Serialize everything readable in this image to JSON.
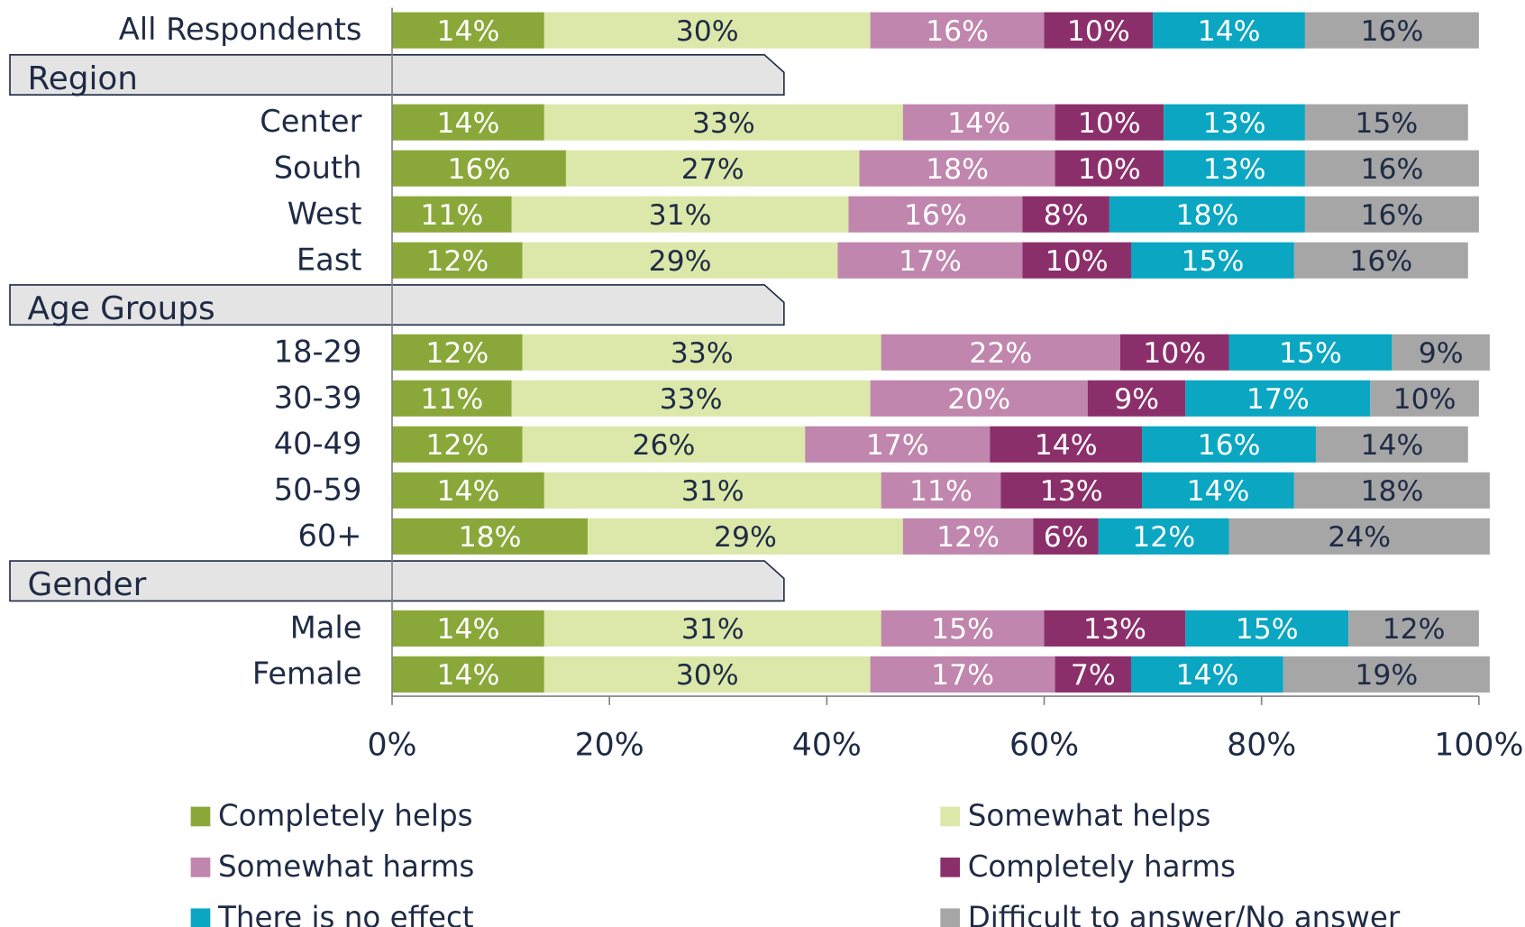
{
  "chart_data": {
    "type": "stacked-bar-horizontal",
    "categories": [
      "All Respondents",
      {
        "section": "Region"
      },
      "Center",
      "South",
      "West",
      "East",
      {
        "section": "Age Groups"
      },
      "18-29",
      "30-39",
      "40-49",
      "50-59",
      "60+",
      {
        "section": "Gender"
      },
      "Male",
      "Female"
    ],
    "series": [
      {
        "name": "Completely helps",
        "color": "#8aa83a",
        "label_color": "#ffffff",
        "values": [
          14,
          null,
          14,
          16,
          11,
          12,
          null,
          12,
          11,
          12,
          14,
          18,
          null,
          14,
          14
        ],
        "value_labels": [
          "14%",
          null,
          "14%",
          "16%",
          "11%",
          "12%",
          null,
          "12%",
          "11%",
          "12%",
          "14%",
          "18%",
          null,
          "14%",
          "14%"
        ]
      },
      {
        "name": "Somewhat helps",
        "color": "#dce8a9",
        "label_color": "#1f2b45",
        "values": [
          30,
          null,
          33,
          27,
          31,
          29,
          null,
          33,
          33,
          26,
          31,
          29,
          null,
          31,
          30
        ],
        "value_labels": [
          "30%",
          null,
          "33%",
          "27%",
          "31%",
          "29%",
          null,
          "33%",
          "33%",
          "26%",
          "31%",
          "29%",
          null,
          "31%",
          "30%"
        ]
      },
      {
        "name": "Somewhat harms",
        "color": "#c086ad",
        "label_color": "#ffffff",
        "values": [
          16,
          null,
          14,
          18,
          16,
          17,
          null,
          22,
          20,
          17,
          11,
          12,
          null,
          15,
          17
        ],
        "value_labels": [
          "16%",
          null,
          "14%",
          "18%",
          "16%",
          "17%",
          null,
          "22%",
          "20%",
          "17%",
          "11%",
          "12%",
          null,
          "15%",
          "17%"
        ]
      },
      {
        "name": "Completely harms",
        "color": "#8b2f6b",
        "label_color": "#ffffff",
        "values": [
          10,
          null,
          10,
          10,
          8,
          10,
          null,
          10,
          9,
          14,
          13,
          6,
          null,
          13,
          7
        ],
        "value_labels": [
          "10%",
          null,
          "10%",
          "10%",
          "8%",
          "10%",
          null,
          "10%",
          "9%",
          "14%",
          "13%",
          "6%",
          null,
          "13%",
          "7%"
        ]
      },
      {
        "name": "There is no effect",
        "color": "#0aa6c2",
        "label_color": "#ffffff",
        "values": [
          14,
          null,
          13,
          13,
          18,
          15,
          null,
          15,
          17,
          16,
          14,
          12,
          null,
          15,
          14
        ],
        "value_labels": [
          "14%",
          null,
          "13%",
          "13%",
          "18%",
          "15%",
          null,
          "15%",
          "17%",
          "16%",
          "14%",
          "12%",
          null,
          "15%",
          "14%"
        ]
      },
      {
        "name": "Difficult to answer/No answer",
        "color": "#a6a6a7",
        "label_color": "#1f2b45",
        "values": [
          16,
          null,
          15,
          16,
          16,
          16,
          null,
          9,
          10,
          14,
          18,
          24,
          null,
          12,
          19
        ],
        "value_labels": [
          "16%",
          null,
          "15%",
          "16%",
          "16%",
          "16%",
          null,
          "9%",
          "10%",
          "14%",
          "18%",
          "24%",
          null,
          "12%",
          "19%"
        ]
      }
    ],
    "xlim": [
      0,
      100
    ],
    "xticks": [
      {
        "value": 0,
        "label": "0%"
      },
      {
        "value": 20,
        "label": "20%"
      },
      {
        "value": 40,
        "label": "40%"
      },
      {
        "value": 60,
        "label": "60%"
      },
      {
        "value": 80,
        "label": "80%"
      },
      {
        "value": 100,
        "label": "100%"
      }
    ],
    "legend": "bottom"
  }
}
